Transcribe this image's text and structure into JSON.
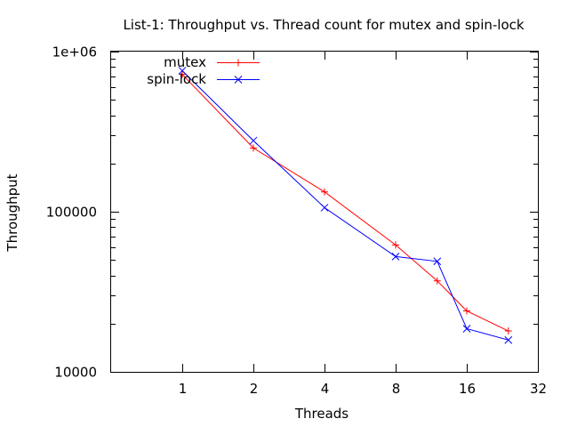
{
  "chart_data": {
    "type": "line",
    "title": "List-1: Throughput vs. Thread count for mutex and spin-lock",
    "xlabel": "Threads",
    "ylabel": "Throughput",
    "xscale": "log2",
    "yscale": "log10",
    "xlim": [
      0.5,
      32
    ],
    "ylim": [
      10000,
      1000000
    ],
    "xticks": [
      1,
      2,
      4,
      8,
      16,
      32
    ],
    "xtick_labels": [
      "1",
      "2",
      "4",
      "8",
      "16",
      "32"
    ],
    "yticks": [
      10000,
      100000,
      1000000
    ],
    "ytick_labels": [
      "10000",
      "100000",
      "1e+06"
    ],
    "grid": false,
    "legend_position": "top-left",
    "series": [
      {
        "name": "mutex",
        "color": "#ff0000",
        "marker": "plus",
        "x": [
          1,
          2,
          4,
          8,
          12,
          16,
          24
        ],
        "y": [
          720000,
          250000,
          133000,
          62000,
          37000,
          24000,
          18000
        ]
      },
      {
        "name": "spin-lock",
        "color": "#0000ff",
        "marker": "cross",
        "x": [
          1,
          2,
          4,
          8,
          12,
          16,
          24
        ],
        "y": [
          760000,
          278000,
          106000,
          52500,
          49000,
          18600,
          15800
        ]
      }
    ]
  }
}
